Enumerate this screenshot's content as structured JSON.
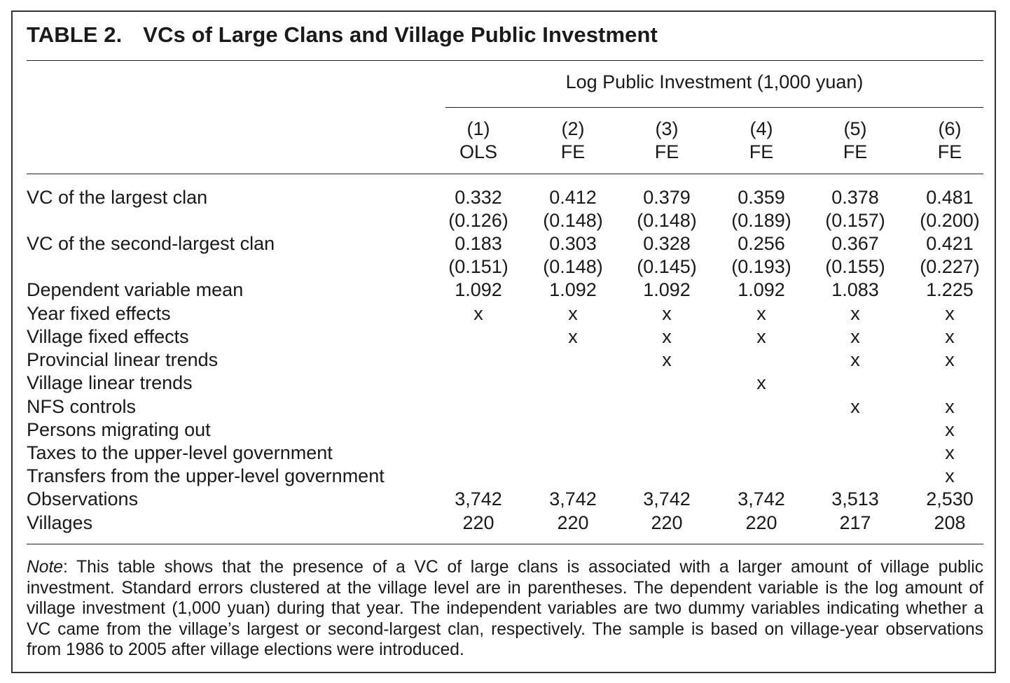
{
  "table": {
    "number": "TABLE 2.",
    "title": "VCs of Large Clans and Village Public Investment",
    "dependent_variable_header": "Log Public Investment (1,000 yuan)",
    "columns": [
      {
        "number": "(1)",
        "method": "OLS"
      },
      {
        "number": "(2)",
        "method": "FE"
      },
      {
        "number": "(3)",
        "method": "FE"
      },
      {
        "number": "(4)",
        "method": "FE"
      },
      {
        "number": "(5)",
        "method": "FE"
      },
      {
        "number": "(6)",
        "method": "FE"
      }
    ],
    "rows": [
      {
        "label": "VC of the largest clan",
        "values": [
          "0.332",
          "0.412",
          "0.379",
          "0.359",
          "0.378",
          "0.481"
        ]
      },
      {
        "label": "",
        "values": [
          "(0.126)",
          "(0.148)",
          "(0.148)",
          "(0.189)",
          "(0.157)",
          "(0.200)"
        ]
      },
      {
        "label": "VC of the second-largest clan",
        "values": [
          "0.183",
          "0.303",
          "0.328",
          "0.256",
          "0.367",
          "0.421"
        ]
      },
      {
        "label": "",
        "values": [
          "(0.151)",
          "(0.148)",
          "(0.145)",
          "(0.193)",
          "(0.155)",
          "(0.227)"
        ]
      },
      {
        "label": "Dependent variable mean",
        "values": [
          "1.092",
          "1.092",
          "1.092",
          "1.092",
          "1.083",
          "1.225"
        ]
      },
      {
        "label": "Year fixed effects",
        "values": [
          "x",
          "x",
          "x",
          "x",
          "x",
          "x"
        ]
      },
      {
        "label": "Village fixed effects",
        "values": [
          "",
          "x",
          "x",
          "x",
          "x",
          "x"
        ]
      },
      {
        "label": "Provincial linear trends",
        "values": [
          "",
          "",
          "x",
          "",
          "x",
          "x"
        ]
      },
      {
        "label": "Village linear trends",
        "values": [
          "",
          "",
          "",
          "x",
          "",
          ""
        ]
      },
      {
        "label": "NFS controls",
        "values": [
          "",
          "",
          "",
          "",
          "x",
          "x"
        ]
      },
      {
        "label": "Persons migrating out",
        "values": [
          "",
          "",
          "",
          "",
          "",
          "x"
        ]
      },
      {
        "label": "Taxes to the upper-level government",
        "values": [
          "",
          "",
          "",
          "",
          "",
          "x"
        ]
      },
      {
        "label": "Transfers from the upper-level government",
        "values": [
          "",
          "",
          "",
          "",
          "",
          "x"
        ]
      },
      {
        "label": "Observations",
        "values": [
          "3,742",
          "3,742",
          "3,742",
          "3,742",
          "3,513",
          "2,530"
        ]
      },
      {
        "label": "Villages",
        "values": [
          "220",
          "220",
          "220",
          "220",
          "217",
          "208"
        ]
      }
    ],
    "note": {
      "label": "Note",
      "text": ": This table shows that the presence of a VC of large clans is associated with a larger amount of village public investment. Standard errors clustered at the village level are in parentheses. The dependent variable is the log amount of village investment (1,000 yuan) during that year. The independent variables are two dummy variables indicating whether a VC came from the village’s largest or second-largest clan, respectively. The sample is based on village-year observations from 1986 to 2005 after village elections were introduced."
    }
  }
}
